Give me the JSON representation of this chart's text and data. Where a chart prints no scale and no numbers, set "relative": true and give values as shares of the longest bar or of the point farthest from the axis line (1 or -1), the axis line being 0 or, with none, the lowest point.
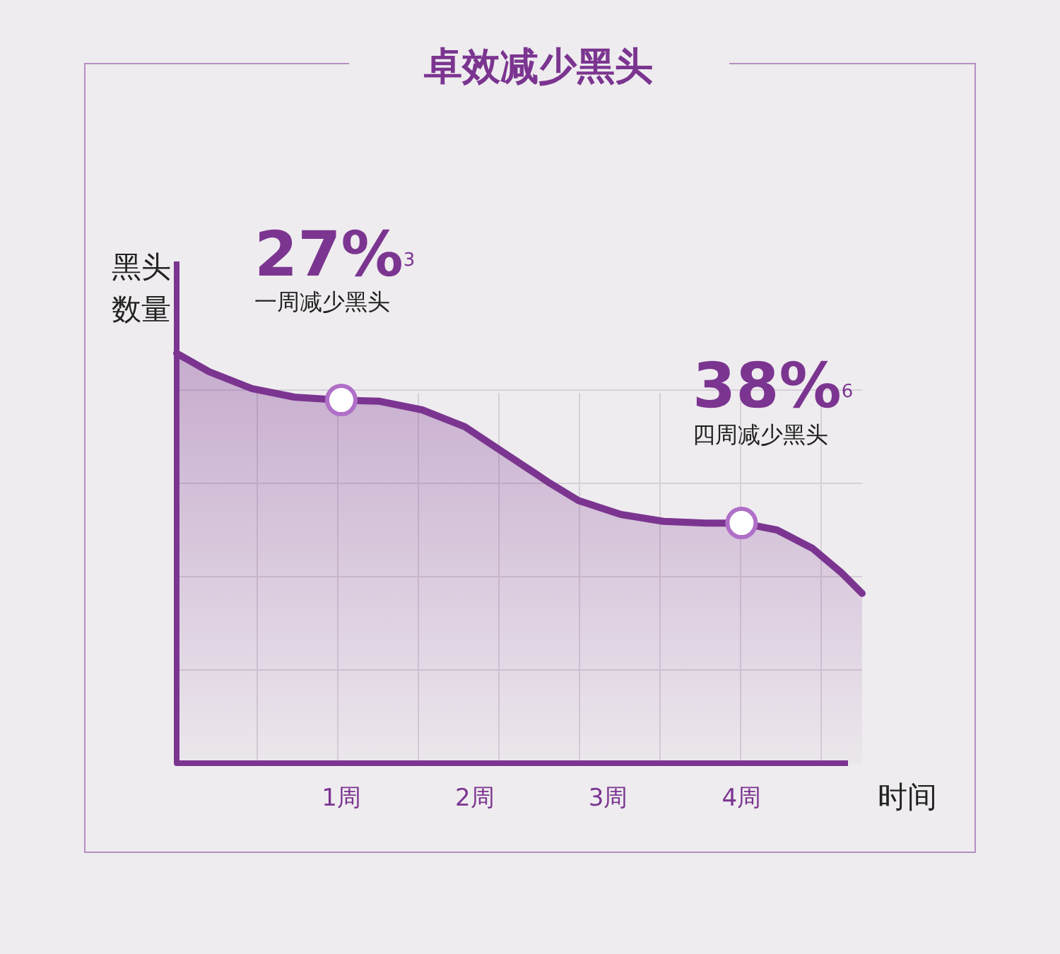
{
  "chart_data": {
    "type": "area",
    "title": "卓效减少黑头",
    "xlabel": "时间",
    "ylabel": "黑头数量",
    "relative": true,
    "color": "#7b3590",
    "grid": true,
    "xlim": [
      -0.234,
      4.904
    ],
    "xticks": [
      {
        "value": 1,
        "label": "1周"
      },
      {
        "value": 2,
        "label": "2周"
      },
      {
        "value": 3,
        "label": "3周"
      },
      {
        "value": 4,
        "label": "4周"
      }
    ],
    "series": [
      {
        "type": "area",
        "color": "#7b3590",
        "x": [
          -0.234,
          0.011,
          0.33,
          0.649,
          1,
          1.287,
          1.606,
          1.926,
          2.245,
          2.564,
          2.777,
          3.096,
          3.415,
          3.734,
          4,
          4.266,
          4.532,
          4.745,
          4.904
        ],
        "values": [
          1,
          0.955,
          0.914,
          0.893,
          0.886,
          0.883,
          0.862,
          0.821,
          0.752,
          0.683,
          0.641,
          0.607,
          0.59,
          0.586,
          0.586,
          0.569,
          0.524,
          0.466,
          0.414
        ]
      },
      {
        "type": "scatter",
        "marker": "circle",
        "color": "#b06fc8",
        "x": [
          1,
          4
        ],
        "values": [
          0.886,
          0.586
        ]
      }
    ],
    "annotations": [
      "27%$^{3}$",
      "一周减少黑头",
      "38%$^{6}$",
      "四周减少黑头"
    ]
  }
}
